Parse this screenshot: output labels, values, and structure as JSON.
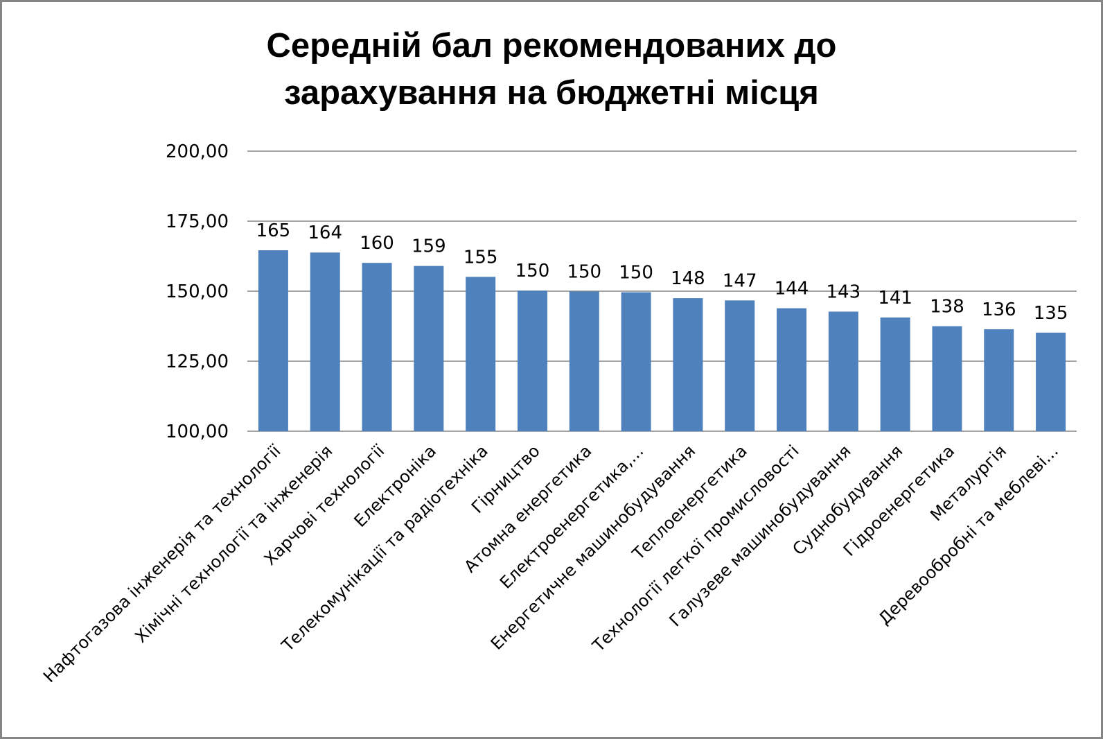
{
  "chart_data": {
    "type": "bar",
    "title": "Середній бал рекомендованих до зарахування на бюджетні місця",
    "title_lines": [
      "Середній бал рекомендованих до",
      "зарахування на бюджетні місця"
    ],
    "xlabel": "",
    "ylabel": "",
    "ylim": [
      100,
      200
    ],
    "yticks": [
      100,
      125,
      150,
      175,
      200
    ],
    "ytick_labels": [
      "100,00",
      "125,00",
      "150,00",
      "175,00",
      "200,00"
    ],
    "grid": true,
    "legend": false,
    "bar_color": "#4F81BD",
    "categories": [
      "Нафтогазова інженерія та технології",
      "Хімічні технології та інженерія",
      "Харчові технології",
      "Електроніка",
      "Телекомунікації та радіотехніка",
      "Гірництво",
      "Атомна енергетика",
      "Електроенергетика,...",
      "Енергетичне машинобудування",
      "Теплоенергетика",
      "Технології легкої промисловості",
      "Галузеве машинобудування",
      "Суднобудування",
      "Гідроенергетика",
      "Металургія",
      "Деревообробні та меблеві..."
    ],
    "values": [
      164.6,
      163.8,
      160.1,
      159.0,
      155.1,
      150.2,
      149.9,
      149.6,
      147.5,
      146.7,
      143.9,
      142.7,
      140.6,
      137.5,
      136.4,
      135.2
    ],
    "data_labels": [
      "165",
      "164",
      "160",
      "159",
      "155",
      "150",
      "150",
      "150",
      "148",
      "147",
      "144",
      "143",
      "141",
      "138",
      "136",
      "135"
    ]
  }
}
